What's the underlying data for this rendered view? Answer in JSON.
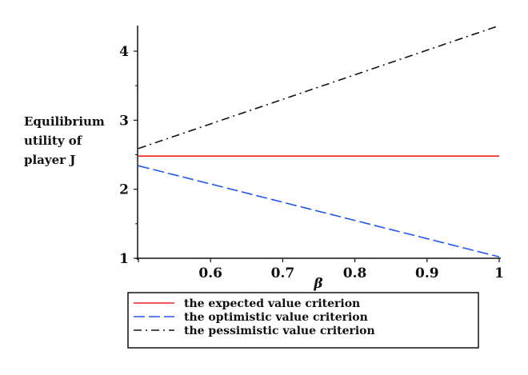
{
  "chart_data": {
    "type": "line",
    "title": "",
    "xlabel": "β",
    "ylabel_lines": [
      "Equilibrium",
      "utility of",
      "player J"
    ],
    "xlim": [
      0.5,
      1.0
    ],
    "ylim": [
      1.0,
      4.37
    ],
    "xticks": [
      0.6,
      0.7,
      0.8,
      0.9,
      1
    ],
    "xtick_labels": [
      "0.6",
      "0.7",
      "0.8",
      "0.9",
      "1"
    ],
    "yticks": [
      1,
      2,
      3,
      4
    ],
    "ytick_labels": [
      "1",
      "2",
      "3",
      "4"
    ],
    "grid": false,
    "legend_placement": "bottom",
    "series": [
      {
        "name": "the expected value criterion",
        "color": "#e8231f",
        "style": "solid",
        "x": [
          0.5,
          1.0
        ],
        "y": [
          2.48,
          2.48
        ]
      },
      {
        "name": "the optimistic value criterion",
        "color": "#2255ee",
        "style": "dash",
        "x": [
          0.5,
          1.0
        ],
        "y": [
          2.34,
          1.02
        ]
      },
      {
        "name": "the pessimistic value criterion",
        "color": "#111111",
        "style": "dashdot",
        "x": [
          0.5,
          1.0
        ],
        "y": [
          2.59,
          4.37
        ]
      }
    ]
  }
}
